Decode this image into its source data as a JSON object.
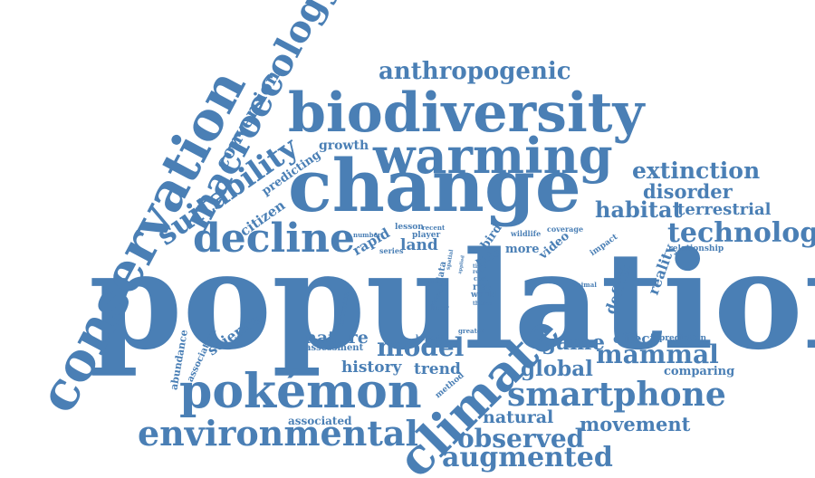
{
  "colors": {
    "word": "#4a7fb5",
    "background": "#ffffff"
  },
  "words": [
    "population",
    "conservation",
    "change",
    "biodiversity",
    "warming",
    "macroecology",
    "climate",
    "pokémon",
    "smartphone",
    "environmental",
    "decline",
    "model",
    "suitability",
    "anthropogenic",
    "extinction",
    "technology",
    "augmented",
    "observed",
    "mammal",
    "conversion",
    "game",
    "global",
    "habitat",
    "disorder",
    "terrestrial",
    "natural",
    "movement",
    "trend",
    "history",
    "science",
    "nature",
    "effect",
    "comparing",
    "land",
    "rapid",
    "citizen",
    "predicting",
    "growth",
    "reality",
    "deficit",
    "bird",
    "rate",
    "more",
    "video",
    "associated",
    "abundance",
    "association",
    "assessment",
    "increase",
    "method",
    "prediction",
    "relationship",
    "impact",
    "wildlife",
    "coverage",
    "lesson",
    "recent",
    "player",
    "number",
    "series",
    "area",
    "data",
    "risk",
    "world",
    "cost",
    "real",
    "time",
    "animal",
    "theme",
    "benefit",
    "greater",
    "virtual",
    "linear",
    "spatial",
    "applied"
  ]
}
